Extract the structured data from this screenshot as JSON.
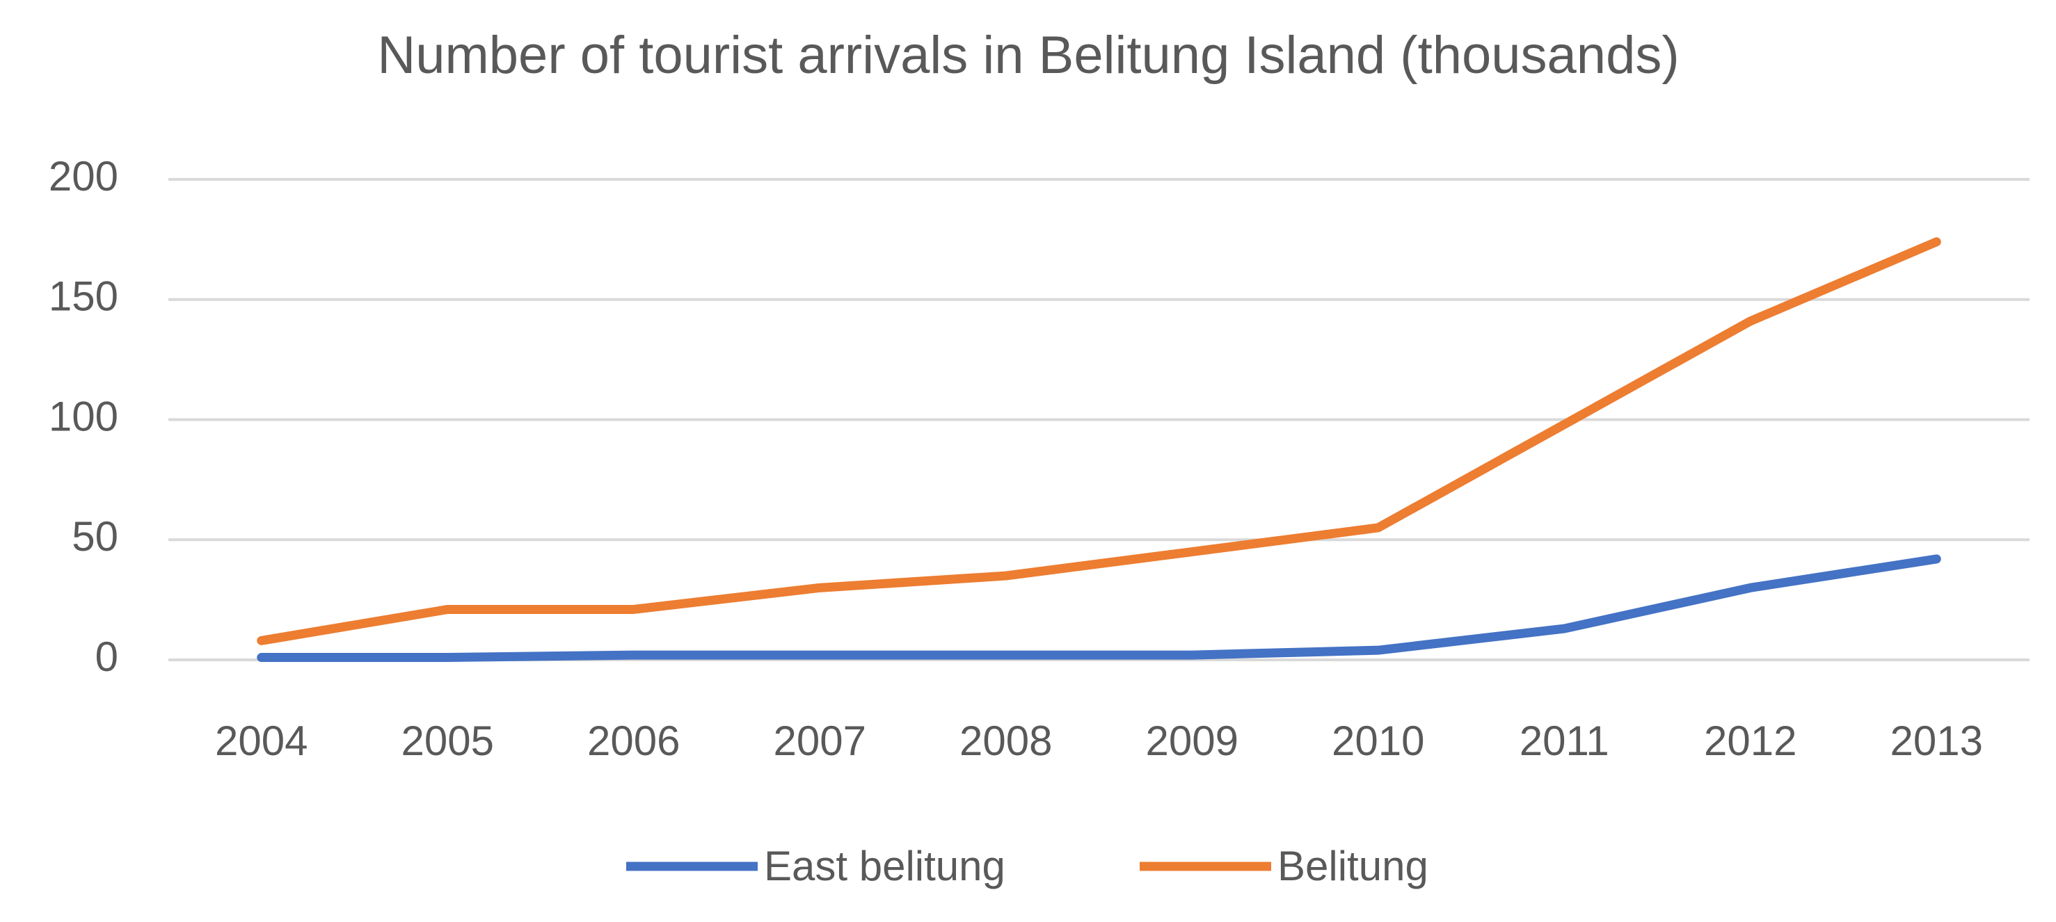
{
  "chart_data": {
    "type": "line",
    "title": "Number of tourist arrivals in Belitung Island (thousands)",
    "categories": [
      "2004",
      "2005",
      "2006",
      "2007",
      "2008",
      "2009",
      "2010",
      "2011",
      "2012",
      "2013"
    ],
    "series": [
      {
        "name": "East belitung",
        "color": "#4472c4",
        "values": [
          1,
          1,
          2,
          2,
          2,
          2,
          4,
          13,
          30,
          42
        ]
      },
      {
        "name": "Belitung",
        "color": "#ed7d31",
        "values": [
          8,
          21,
          21,
          30,
          35,
          45,
          55,
          98,
          141,
          174
        ]
      }
    ],
    "ylim": [
      0,
      200
    ],
    "yticks": [
      0,
      50,
      100,
      150,
      200
    ],
    "grid": true,
    "legend": "bottom"
  }
}
